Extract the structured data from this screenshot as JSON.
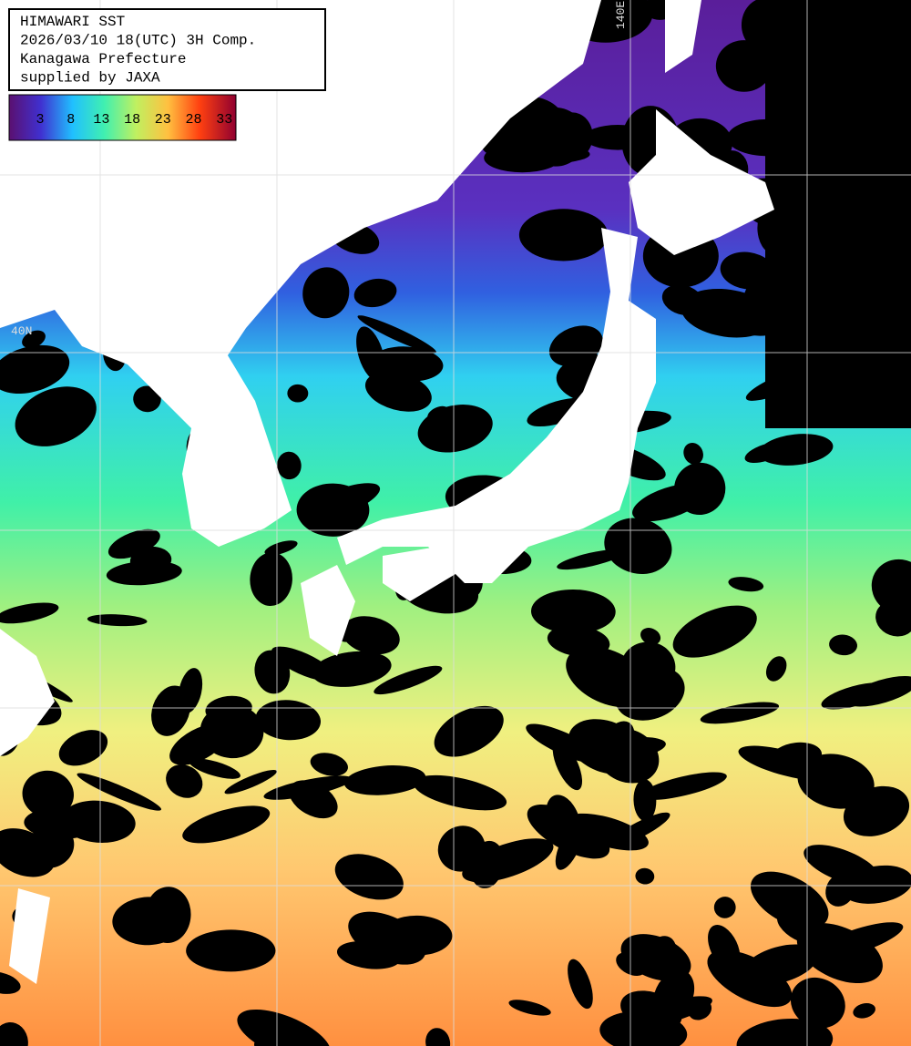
{
  "header": {
    "lines": [
      "HIMAWARI SST",
      "2026/03/10 18(UTC) 3H Comp.",
      "Kanagawa Prefecture",
      "supplied by JAXA"
    ]
  },
  "colorbar": {
    "labels": [
      "3",
      "8",
      "13",
      "18",
      "23",
      "28",
      "33"
    ]
  },
  "grid_labels": {
    "lat": "40N",
    "lon": "140E"
  }
}
